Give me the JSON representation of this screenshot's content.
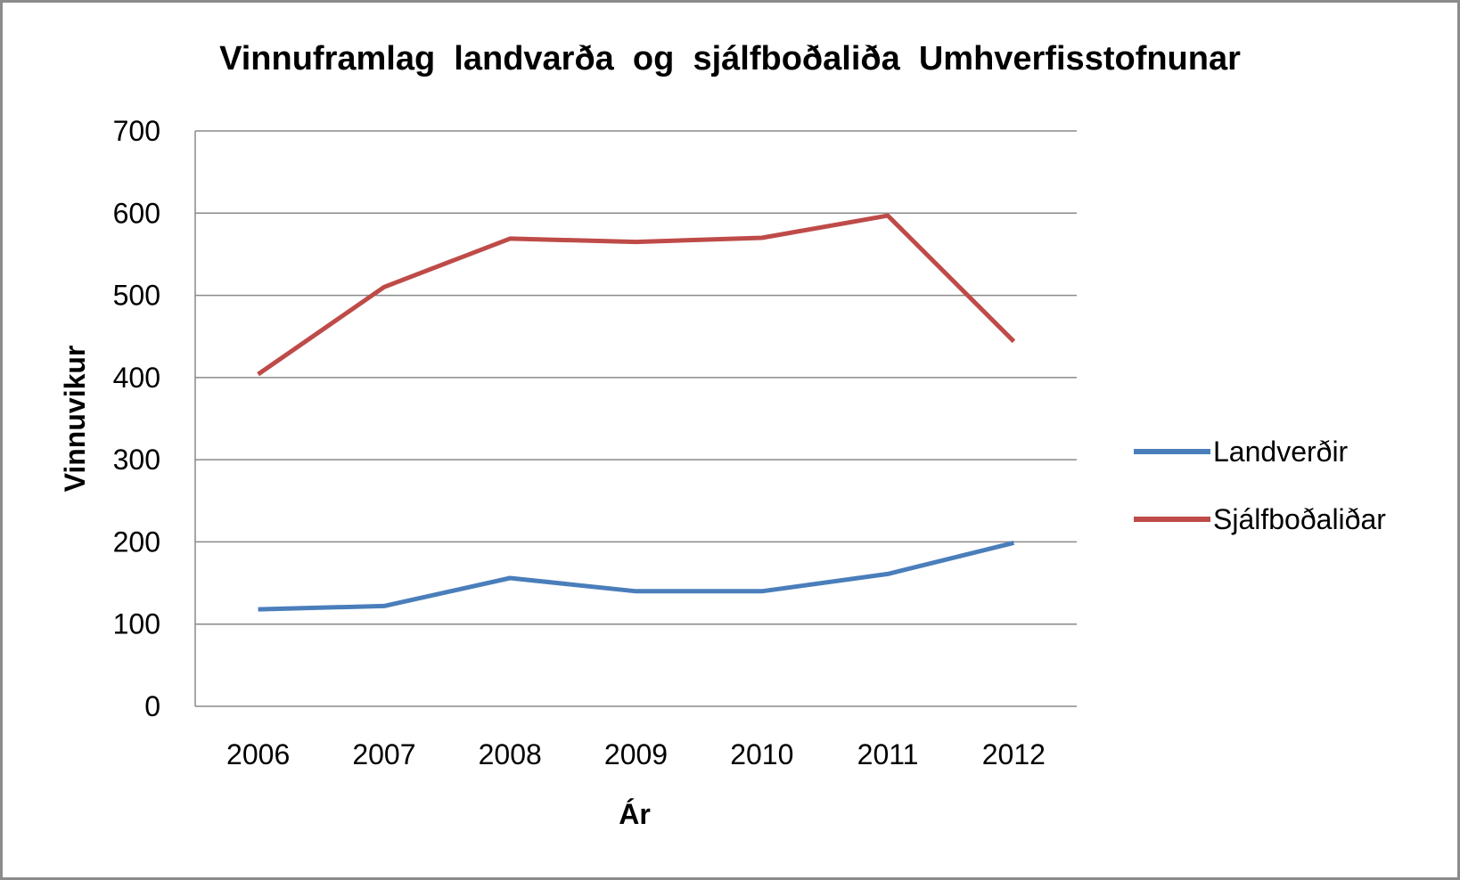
{
  "chart_data": {
    "type": "line",
    "title": "Vinnuframlag  landvarða  og  sjálfboðaliða  Umhverfisstofnunar",
    "xlabel": "Ár",
    "ylabel": "Vinnuvikur",
    "categories": [
      "2006",
      "2007",
      "2008",
      "2009",
      "2010",
      "2011",
      "2012"
    ],
    "ylim": [
      0,
      700
    ],
    "yticks": [
      0,
      100,
      200,
      300,
      400,
      500,
      600,
      700
    ],
    "grid": true,
    "legend_position": "right",
    "series": [
      {
        "name": "Landverðir",
        "color": "#4a7ebb",
        "values": [
          118,
          122,
          156,
          140,
          140,
          161,
          199
        ]
      },
      {
        "name": "Sjálfboðaliðar",
        "color": "#be4b48",
        "values": [
          404,
          510,
          569,
          565,
          570,
          597,
          444
        ]
      }
    ]
  }
}
